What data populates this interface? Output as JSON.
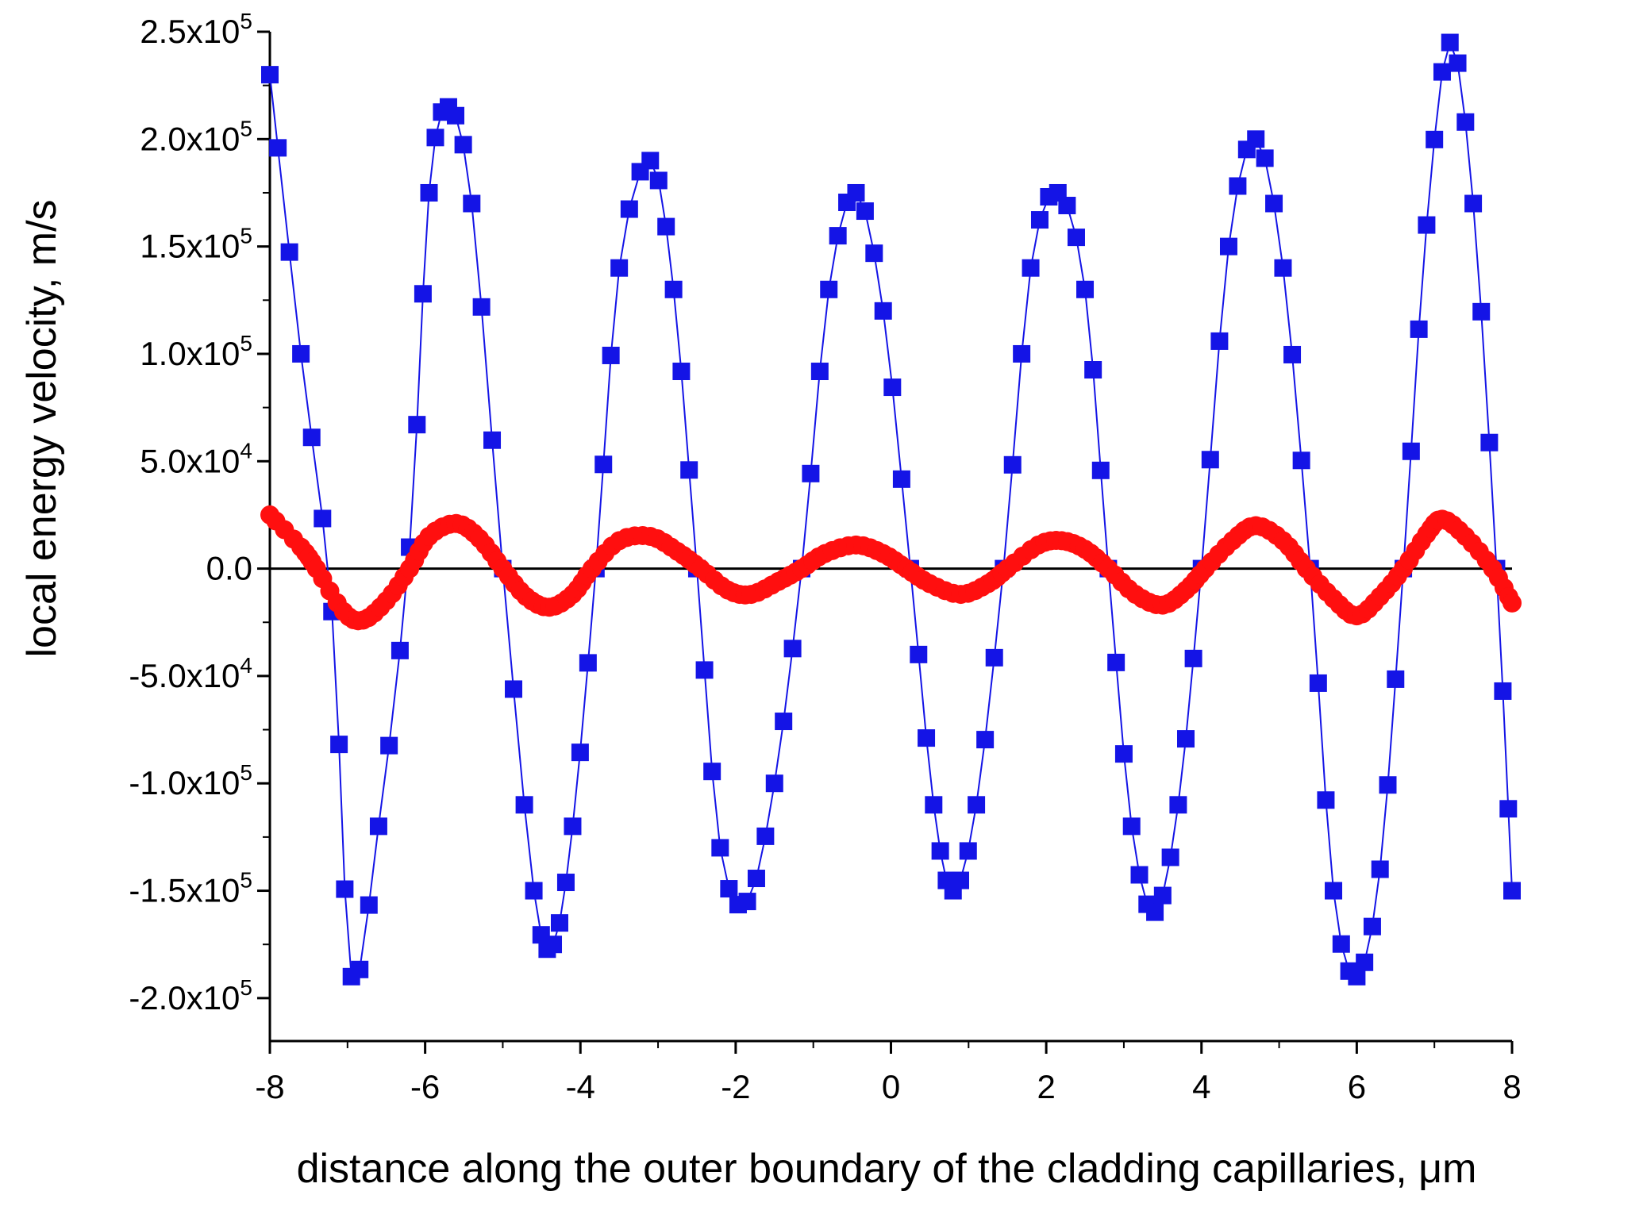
{
  "chart_data": {
    "type": "scatter",
    "title": "",
    "xlabel": "distance along the outer boundary of the cladding capillaries, μm",
    "ylabel": "local energy velocity, m/s",
    "xlim": [
      -8,
      8
    ],
    "ylim": [
      -220000,
      250000
    ],
    "grid": false,
    "legend": "none",
    "x_ticks": [
      -8,
      -6,
      -4,
      -2,
      0,
      2,
      4,
      6,
      8
    ],
    "x_tick_labels": [
      "-8",
      "-6",
      "-4",
      "-2",
      "0",
      "2",
      "4",
      "6",
      "8"
    ],
    "y_ticks": [
      {
        "value": 250000,
        "mant": "2.5x10",
        "exp": "5"
      },
      {
        "value": 200000,
        "mant": "2.0x10",
        "exp": "5"
      },
      {
        "value": 150000,
        "mant": "1.5x10",
        "exp": "5"
      },
      {
        "value": 100000,
        "mant": "1.0x10",
        "exp": "5"
      },
      {
        "value": 50000,
        "mant": "5.0x10",
        "exp": "4"
      },
      {
        "value": 0,
        "mant": "0.0",
        "exp": ""
      },
      {
        "value": -50000,
        "mant": "-5.0x10",
        "exp": "4"
      },
      {
        "value": -100000,
        "mant": "-1.0x10",
        "exp": "5"
      },
      {
        "value": -150000,
        "mant": "-1.5x10",
        "exp": "5"
      },
      {
        "value": -200000,
        "mant": "-2.0x10",
        "exp": "5"
      }
    ],
    "zero_line": true,
    "series": [
      {
        "marker": "square",
        "color": "#1414e6",
        "line": true,
        "x": [
          -8.0,
          -7.6,
          -7.2,
          -6.95,
          -6.6,
          -6.2,
          -5.95,
          -5.7,
          -5.4,
          -5.0,
          -4.6,
          -4.35,
          -4.1,
          -3.8,
          -3.5,
          -3.1,
          -2.8,
          -2.5,
          -2.2,
          -1.85,
          -1.5,
          -1.15,
          -0.8,
          -0.45,
          -0.1,
          0.25,
          0.55,
          0.8,
          1.1,
          1.45,
          1.8,
          2.15,
          2.5,
          2.8,
          3.1,
          3.4,
          3.7,
          4.0,
          4.35,
          4.7,
          5.05,
          5.4,
          5.7,
          6.0,
          6.3,
          6.6,
          6.9,
          7.2,
          7.5,
          7.8,
          8.0
        ],
        "y": [
          230000,
          100000,
          -20000,
          -190000,
          -120000,
          10000,
          175000,
          215000,
          170000,
          0,
          -150000,
          -175000,
          -120000,
          0,
          140000,
          190000,
          130000,
          0,
          -130000,
          -155000,
          -100000,
          0,
          130000,
          175000,
          120000,
          0,
          -110000,
          -150000,
          -110000,
          0,
          140000,
          175000,
          130000,
          0,
          -120000,
          -160000,
          -110000,
          0,
          150000,
          200000,
          140000,
          0,
          -150000,
          -190000,
          -140000,
          0,
          160000,
          245000,
          170000,
          0,
          -150000
        ]
      },
      {
        "marker": "circle",
        "color": "#ff0f0f",
        "line": false,
        "x": [
          -8.0,
          -7.6,
          -7.4,
          -7.05,
          -6.8,
          -6.5,
          -6.2,
          -5.95,
          -5.6,
          -5.3,
          -5.0,
          -4.7,
          -4.4,
          -4.1,
          -3.85,
          -3.5,
          -3.1,
          -2.75,
          -2.45,
          -2.1,
          -1.8,
          -1.45,
          -1.15,
          -0.85,
          -0.45,
          -0.1,
          0.2,
          0.5,
          0.9,
          1.25,
          1.5,
          1.9,
          2.2,
          2.5,
          2.8,
          3.15,
          3.5,
          3.8,
          4.05,
          4.4,
          4.7,
          5.05,
          5.35,
          5.7,
          6.0,
          6.3,
          6.6,
          6.9,
          7.1,
          7.4,
          7.75,
          8.0
        ],
        "y": [
          25000,
          10000,
          0,
          -20000,
          -24000,
          -15000,
          0,
          15000,
          21000,
          14000,
          0,
          -13000,
          -18000,
          -12000,
          0,
          13000,
          15000,
          8000,
          0,
          -10000,
          -12000,
          -6000,
          0,
          7000,
          11000,
          7000,
          0,
          -7000,
          -12000,
          -7000,
          0,
          11000,
          13000,
          9000,
          0,
          -12000,
          -17000,
          -10000,
          0,
          13000,
          20000,
          13000,
          0,
          -14000,
          -22000,
          -13000,
          0,
          16000,
          23000,
          15000,
          0,
          -16000
        ]
      }
    ]
  }
}
